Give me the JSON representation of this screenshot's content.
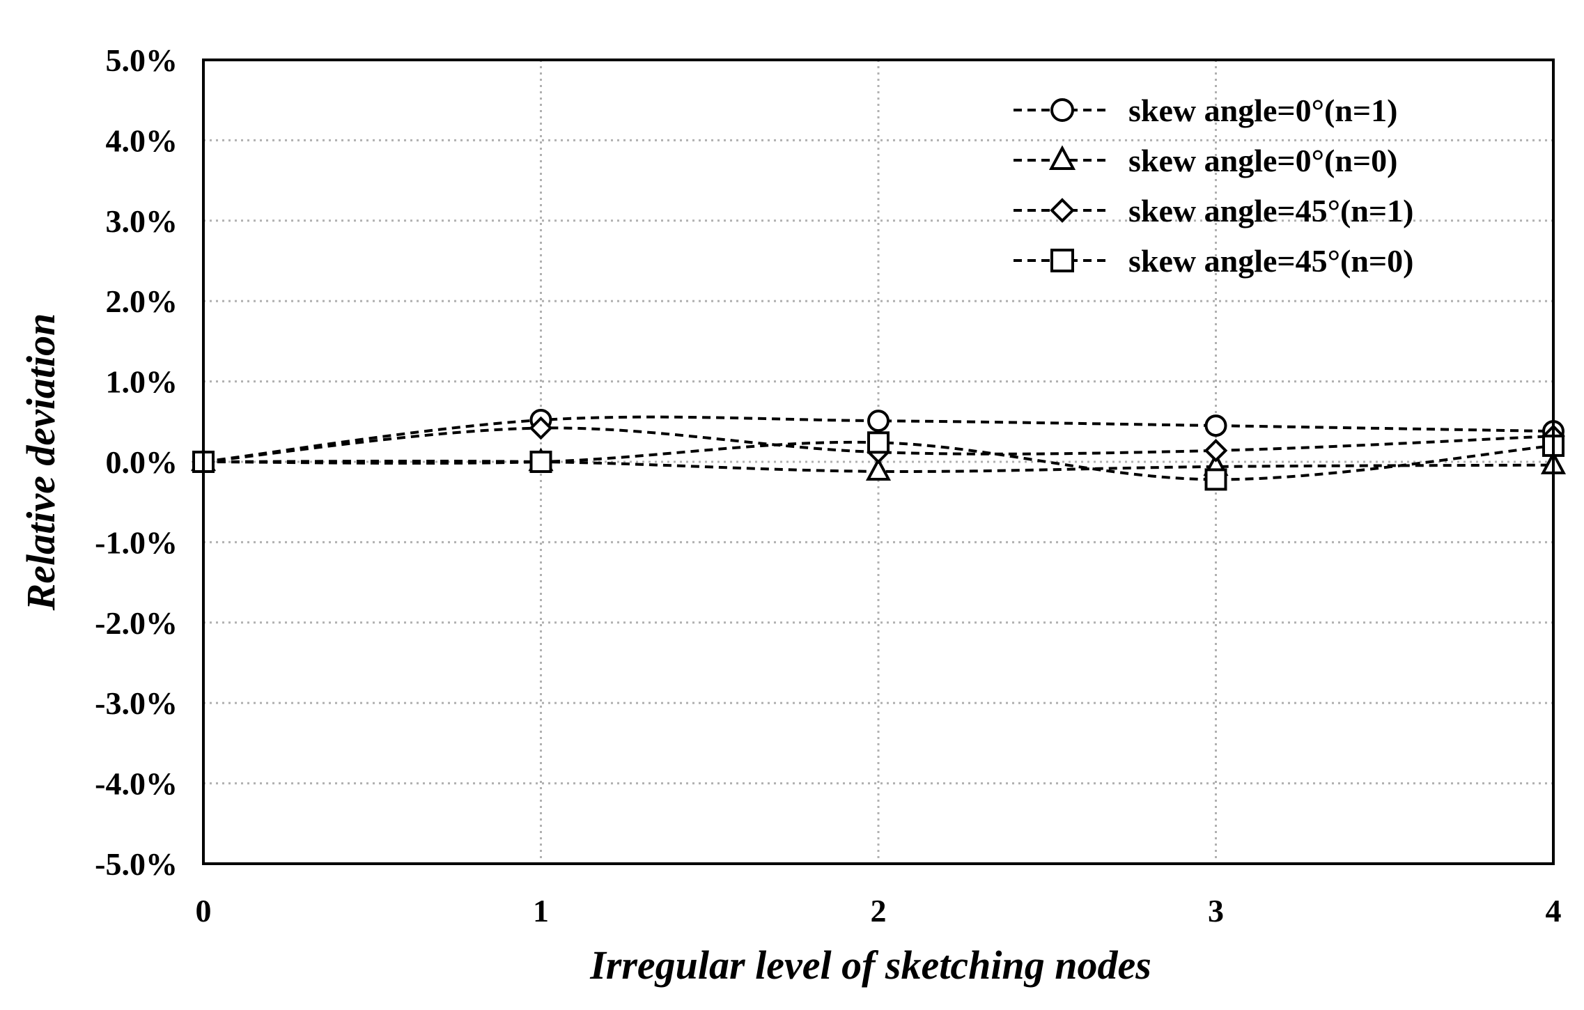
{
  "chart_data": {
    "type": "line",
    "title": "",
    "xlabel": "Irregular level of sketching nodes",
    "ylabel": "Relative deviation",
    "x": [
      0,
      1,
      2,
      3,
      4
    ],
    "xlim": [
      0,
      4
    ],
    "ylim": [
      -5.0,
      5.0
    ],
    "x_ticks": [
      "0",
      "1",
      "2",
      "3",
      "4"
    ],
    "y_ticks": [
      "5.0%",
      "4.0%",
      "3.0%",
      "2.0%",
      "1.0%",
      "0.0%",
      "-1.0%",
      "-2.0%",
      "-3.0%",
      "-4.0%",
      "-5.0%"
    ],
    "grid": true,
    "legend_position": "top-right",
    "series": [
      {
        "name": "skew angle=0°(n=1)",
        "marker": "circle",
        "values": [
          0.0,
          0.52,
          0.51,
          0.45,
          0.38
        ]
      },
      {
        "name": "skew angle=0°(n=0)",
        "marker": "triangle",
        "values": [
          0.0,
          0.0,
          -0.12,
          -0.06,
          -0.04
        ]
      },
      {
        "name": "skew angle=45°(n=1)",
        "marker": "diamond",
        "values": [
          0.0,
          0.42,
          0.12,
          0.14,
          0.32
        ]
      },
      {
        "name": "skew angle=45°(n=0)",
        "marker": "square",
        "values": [
          0.0,
          0.0,
          0.24,
          -0.22,
          0.2
        ]
      }
    ]
  }
}
